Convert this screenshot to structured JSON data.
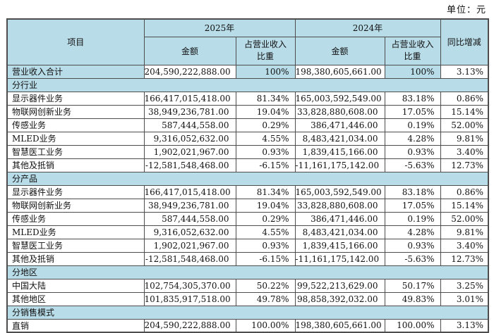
{
  "unit_label": "单位：元",
  "colors": {
    "cell_blue": "#b8dce8",
    "border": "#4d4d4d",
    "text": "#111111",
    "page_bg": "#ffffff"
  },
  "table": {
    "header": {
      "item": "项目",
      "col_2025": "2025年",
      "col_2024": "2024年",
      "amount": "金额",
      "share": "占营业收入比重",
      "yoy": "同比增减"
    },
    "rows": [
      {
        "type": "total",
        "label": "营业收入合计",
        "amount_2025": "204,590,222,888.00",
        "share_2025": "100%",
        "amount_2024": "198,380,605,661.00",
        "share_2024": "100%",
        "yoy": "3.13%"
      },
      {
        "type": "section",
        "label": "分行业"
      },
      {
        "type": "data",
        "label": "显示器件业务",
        "amount_2025": "166,417,015,418.00",
        "share_2025": "81.34%",
        "amount_2024": "165,003,592,549.00",
        "share_2024": "83.18%",
        "yoy": "0.86%"
      },
      {
        "type": "data",
        "label": "物联网创新业务",
        "amount_2025": "38,949,236,781.00",
        "share_2025": "19.04%",
        "amount_2024": "33,828,880,608.00",
        "share_2024": "17.05%",
        "yoy": "15.14%"
      },
      {
        "type": "data",
        "label": "传感业务",
        "amount_2025": "587,444,558.00",
        "share_2025": "0.29%",
        "amount_2024": "386,471,446.00",
        "share_2024": "0.19%",
        "yoy": "52.00%"
      },
      {
        "type": "data",
        "label": "MLED业务",
        "amount_2025": "9,316,052,632.00",
        "share_2025": "4.55%",
        "amount_2024": "8,483,421,034.00",
        "share_2024": "4.28%",
        "yoy": "9.81%"
      },
      {
        "type": "data",
        "label": "智慧医工业务",
        "amount_2025": "1,902,021,967.00",
        "share_2025": "0.93%",
        "amount_2024": "1,839,415,166.00",
        "share_2024": "0.93%",
        "yoy": "3.40%"
      },
      {
        "type": "data",
        "label": "其他及抵销",
        "amount_2025": "-12,581,548,468.00",
        "share_2025": "-6.15%",
        "amount_2024": "-11,161,175,142.00",
        "share_2024": "-5.63%",
        "yoy": "12.73%"
      },
      {
        "type": "section",
        "label": "分产品"
      },
      {
        "type": "data",
        "label": "显示器件业务",
        "amount_2025": "166,417,015,418.00",
        "share_2025": "81.34%",
        "amount_2024": "165,003,592,549.00",
        "share_2024": "83.18%",
        "yoy": "0.86%"
      },
      {
        "type": "data",
        "label": "物联网创新业务",
        "amount_2025": "38,949,236,781.00",
        "share_2025": "19.04%",
        "amount_2024": "33,828,880,608.00",
        "share_2024": "17.05%",
        "yoy": "15.14%"
      },
      {
        "type": "data",
        "label": "传感业务",
        "amount_2025": "587,444,558.00",
        "share_2025": "0.29%",
        "amount_2024": "386,471,446.00",
        "share_2024": "0.19%",
        "yoy": "52.00%"
      },
      {
        "type": "data",
        "label": "MLED业务",
        "amount_2025": "9,316,052,632.00",
        "share_2025": "4.55%",
        "amount_2024": "8,483,421,034.00",
        "share_2024": "4.28%",
        "yoy": "9.81%"
      },
      {
        "type": "data",
        "label": "智慧医工业务",
        "amount_2025": "1,902,021,967.00",
        "share_2025": "0.93%",
        "amount_2024": "1,839,415,166.00",
        "share_2024": "0.93%",
        "yoy": "3.40%"
      },
      {
        "type": "data",
        "label": "其他及抵销",
        "amount_2025": "-12,581,548,468.00",
        "share_2025": "-6.15%",
        "amount_2024": "-11,161,175,142.00",
        "share_2024": "-5.63%",
        "yoy": "12.73%"
      },
      {
        "type": "section",
        "label": "分地区"
      },
      {
        "type": "data",
        "label": "中国大陆",
        "amount_2025": "102,754,305,370.00",
        "share_2025": "50.22%",
        "amount_2024": "99,522,213,629.00",
        "share_2024": "50.17%",
        "yoy": "3.25%"
      },
      {
        "type": "data",
        "label": "其他地区",
        "amount_2025": "101,835,917,518.00",
        "share_2025": "49.78%",
        "amount_2024": "98,858,392,032.00",
        "share_2024": "49.83%",
        "yoy": "3.01%"
      },
      {
        "type": "section",
        "label": "分销售模式"
      },
      {
        "type": "data",
        "label": "直销",
        "amount_2025": "204,590,222,888.00",
        "share_2025": "100.00%",
        "amount_2024": "198,380,605,661.00",
        "share_2024": "100.00%",
        "yoy": "3.13%"
      }
    ]
  }
}
